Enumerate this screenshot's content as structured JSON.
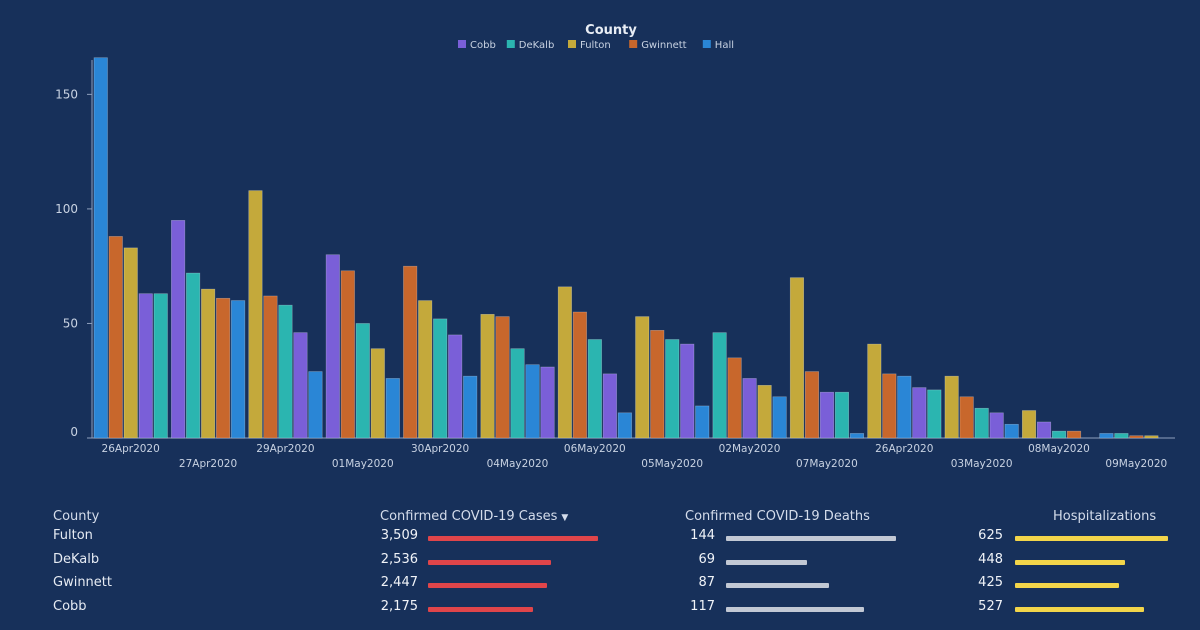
{
  "chart_data": {
    "type": "bar",
    "legend_title": "County",
    "legend_position": "top-center",
    "series": [
      {
        "name": "Cobb",
        "color": "#7a5fd8"
      },
      {
        "name": "DeKalb",
        "color": "#2bb5b0"
      },
      {
        "name": "Fulton",
        "color": "#c4a93b"
      },
      {
        "name": "Gwinnett",
        "color": "#c8672c"
      },
      {
        "name": "Hall",
        "color": "#2a86d6"
      }
    ],
    "ylim": [
      0,
      165
    ],
    "yticks": [
      0,
      50,
      100,
      150
    ],
    "categories": [
      {
        "label": "26Apr2020",
        "bars": [
          [
            4,
            166
          ],
          [
            3,
            88
          ],
          [
            2,
            83
          ],
          [
            0,
            63
          ],
          [
            1,
            63
          ]
        ]
      },
      {
        "label": "27Apr2020",
        "bars": [
          [
            0,
            95
          ],
          [
            1,
            72
          ],
          [
            2,
            65
          ],
          [
            3,
            61
          ],
          [
            4,
            60
          ]
        ]
      },
      {
        "label": "29Apr2020",
        "bars": [
          [
            2,
            108
          ],
          [
            3,
            62
          ],
          [
            1,
            58
          ],
          [
            0,
            46
          ],
          [
            4,
            29
          ]
        ]
      },
      {
        "label": "01May2020",
        "bars": [
          [
            0,
            80
          ],
          [
            3,
            73
          ],
          [
            1,
            50
          ],
          [
            2,
            39
          ],
          [
            4,
            26
          ]
        ]
      },
      {
        "label": "30Apr2020",
        "bars": [
          [
            3,
            75
          ],
          [
            2,
            60
          ],
          [
            1,
            52
          ],
          [
            0,
            45
          ],
          [
            4,
            27
          ]
        ]
      },
      {
        "label": "04May2020",
        "bars": [
          [
            2,
            54
          ],
          [
            3,
            53
          ],
          [
            1,
            39
          ],
          [
            4,
            32
          ],
          [
            0,
            31
          ]
        ]
      },
      {
        "label": "06May2020",
        "bars": [
          [
            2,
            66
          ],
          [
            3,
            55
          ],
          [
            1,
            43
          ],
          [
            0,
            28
          ],
          [
            4,
            11
          ]
        ]
      },
      {
        "label": "05May2020",
        "bars": [
          [
            2,
            53
          ],
          [
            3,
            47
          ],
          [
            1,
            43
          ],
          [
            0,
            41
          ],
          [
            4,
            14
          ]
        ]
      },
      {
        "label": "02May2020",
        "bars": [
          [
            1,
            46
          ],
          [
            3,
            35
          ],
          [
            0,
            26
          ],
          [
            2,
            23
          ],
          [
            4,
            18
          ]
        ]
      },
      {
        "label": "07May2020",
        "bars": [
          [
            2,
            70
          ],
          [
            3,
            29
          ],
          [
            0,
            20
          ],
          [
            1,
            20
          ],
          [
            4,
            2
          ]
        ]
      },
      {
        "label": "26Apr2020",
        "bars": [
          [
            2,
            41
          ],
          [
            3,
            28
          ],
          [
            4,
            27
          ],
          [
            0,
            22
          ],
          [
            1,
            21
          ]
        ]
      },
      {
        "label": "03May2020",
        "bars": [
          [
            2,
            27
          ],
          [
            3,
            18
          ],
          [
            1,
            13
          ],
          [
            0,
            11
          ],
          [
            4,
            6
          ]
        ]
      },
      {
        "label": "08May2020",
        "bars": [
          [
            2,
            12
          ],
          [
            0,
            7
          ],
          [
            1,
            3
          ],
          [
            3,
            3
          ]
        ]
      },
      {
        "label": "09May2020",
        "bars": [
          [
            4,
            2
          ],
          [
            1,
            2
          ],
          [
            3,
            1
          ],
          [
            2,
            1
          ]
        ]
      }
    ]
  },
  "table": {
    "headers": {
      "county": "County",
      "cases": "Confirmed COVID-19 Cases",
      "deaths": "Confirmed COVID-19 Deaths",
      "hosp": "Hospitalizations"
    },
    "sort_indicator": "▼",
    "bar_colors": {
      "cases": "#e0454a",
      "deaths": "#c2c8d4",
      "hosp": "#f3d54a"
    },
    "max": {
      "cases": 3509,
      "deaths": 144,
      "hosp": 625
    },
    "rows": [
      {
        "county": "Fulton",
        "cases_label": "3,509",
        "cases": 3509,
        "deaths_label": "144",
        "deaths": 144,
        "hosp_label": "625",
        "hosp": 625
      },
      {
        "county": "DeKalb",
        "cases_label": "2,536",
        "cases": 2536,
        "deaths_label": "69",
        "deaths": 69,
        "hosp_label": "448",
        "hosp": 448
      },
      {
        "county": "Gwinnett",
        "cases_label": "2,447",
        "cases": 2447,
        "deaths_label": "87",
        "deaths": 87,
        "hosp_label": "425",
        "hosp": 425
      },
      {
        "county": "Cobb",
        "cases_label": "2,175",
        "cases": 2175,
        "deaths_label": "117",
        "deaths": 117,
        "hosp_label": "527",
        "hosp": 527
      }
    ]
  }
}
